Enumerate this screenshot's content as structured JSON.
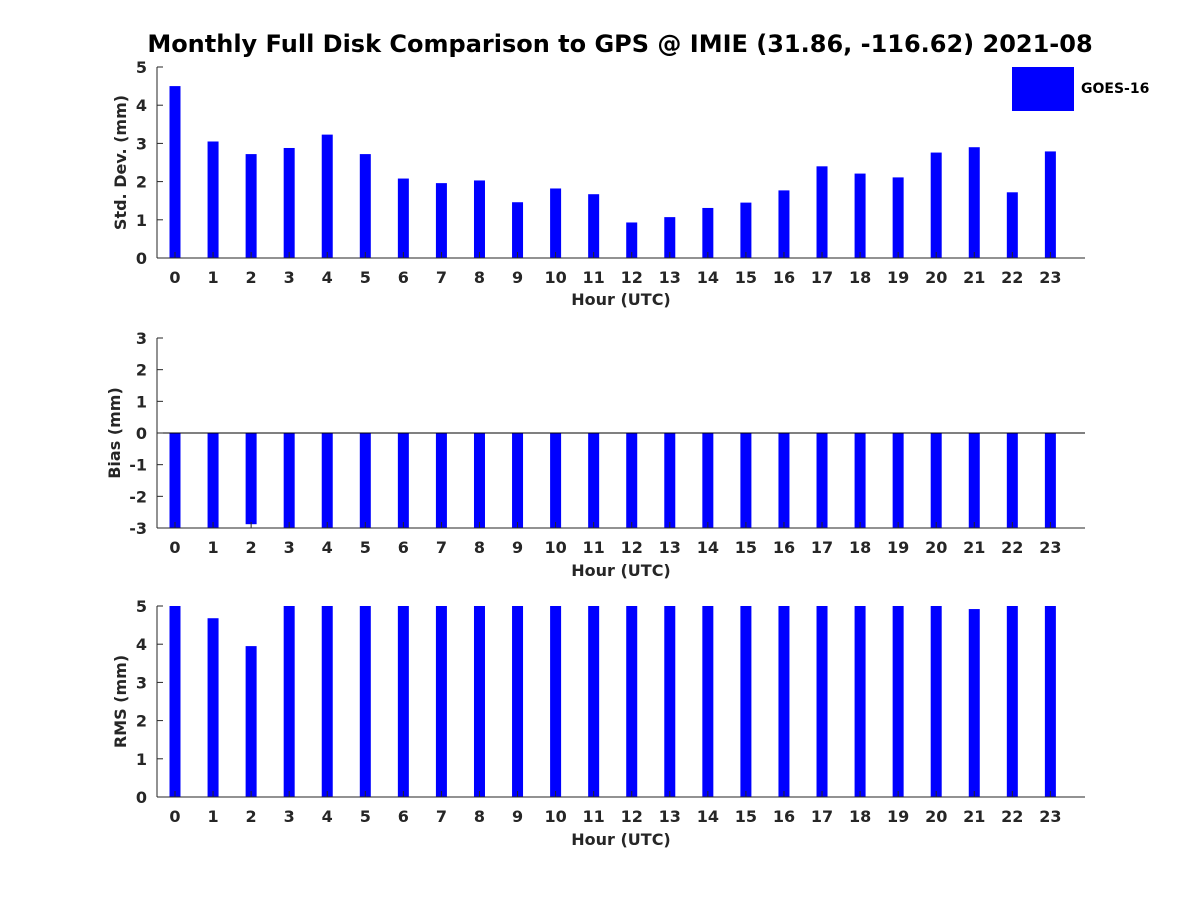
{
  "title": "Monthly Full Disk Comparison to GPS @ IMIE (31.86, -116.62) 2021-08",
  "colors": {
    "bar": "#0000ff",
    "axis": "#262626"
  },
  "legend": {
    "label": "GOES-16"
  },
  "chart_data": [
    {
      "type": "bar",
      "name": "std-dev",
      "xlabel": "Hour (UTC)",
      "ylabel": "Std. Dev. (mm)",
      "ylim": [
        0,
        5
      ],
      "yticks": [
        "0",
        "1",
        "2",
        "3",
        "4",
        "5"
      ],
      "categories": [
        "0",
        "1",
        "2",
        "3",
        "4",
        "5",
        "6",
        "7",
        "8",
        "9",
        "10",
        "11",
        "12",
        "13",
        "14",
        "15",
        "16",
        "17",
        "18",
        "19",
        "20",
        "21",
        "22",
        "23"
      ],
      "series": [
        {
          "name": "GOES-16",
          "values": [
            4.5,
            3.05,
            2.72,
            2.88,
            3.23,
            2.72,
            2.08,
            1.96,
            2.03,
            1.46,
            1.82,
            1.67,
            0.93,
            1.07,
            1.31,
            1.45,
            1.77,
            2.4,
            2.21,
            2.11,
            2.76,
            2.9,
            1.72,
            2.79
          ]
        }
      ]
    },
    {
      "type": "bar",
      "name": "bias",
      "xlabel": "Hour (UTC)",
      "ylabel": "Bias (mm)",
      "ylim": [
        -3,
        3
      ],
      "yticks": [
        "-3",
        "-2",
        "-1",
        "0",
        "1",
        "2",
        "3"
      ],
      "zero_line": true,
      "categories": [
        "0",
        "1",
        "2",
        "3",
        "4",
        "5",
        "6",
        "7",
        "8",
        "9",
        "10",
        "11",
        "12",
        "13",
        "14",
        "15",
        "16",
        "17",
        "18",
        "19",
        "20",
        "21",
        "22",
        "23"
      ],
      "series": [
        {
          "name": "GOES-16",
          "values": [
            -3,
            -3,
            -2.88,
            -3,
            -3,
            -3,
            -3,
            -3,
            -3,
            -3,
            -3,
            -3,
            -3,
            -3,
            -3,
            -3,
            -3,
            -3,
            -3,
            -3,
            -3,
            -3,
            -3,
            -3
          ]
        }
      ]
    },
    {
      "type": "bar",
      "name": "rms",
      "xlabel": "Hour (UTC)",
      "ylabel": "RMS (mm)",
      "ylim": [
        0,
        5
      ],
      "yticks": [
        "0",
        "1",
        "2",
        "3",
        "4",
        "5"
      ],
      "categories": [
        "0",
        "1",
        "2",
        "3",
        "4",
        "5",
        "6",
        "7",
        "8",
        "9",
        "10",
        "11",
        "12",
        "13",
        "14",
        "15",
        "16",
        "17",
        "18",
        "19",
        "20",
        "21",
        "22",
        "23"
      ],
      "series": [
        {
          "name": "GOES-16",
          "values": [
            5,
            4.68,
            3.95,
            5,
            5,
            5,
            5,
            5,
            5,
            5,
            5,
            5,
            5,
            5,
            5,
            5,
            5,
            5,
            5,
            5,
            5,
            4.92,
            5,
            5
          ]
        }
      ]
    }
  ]
}
